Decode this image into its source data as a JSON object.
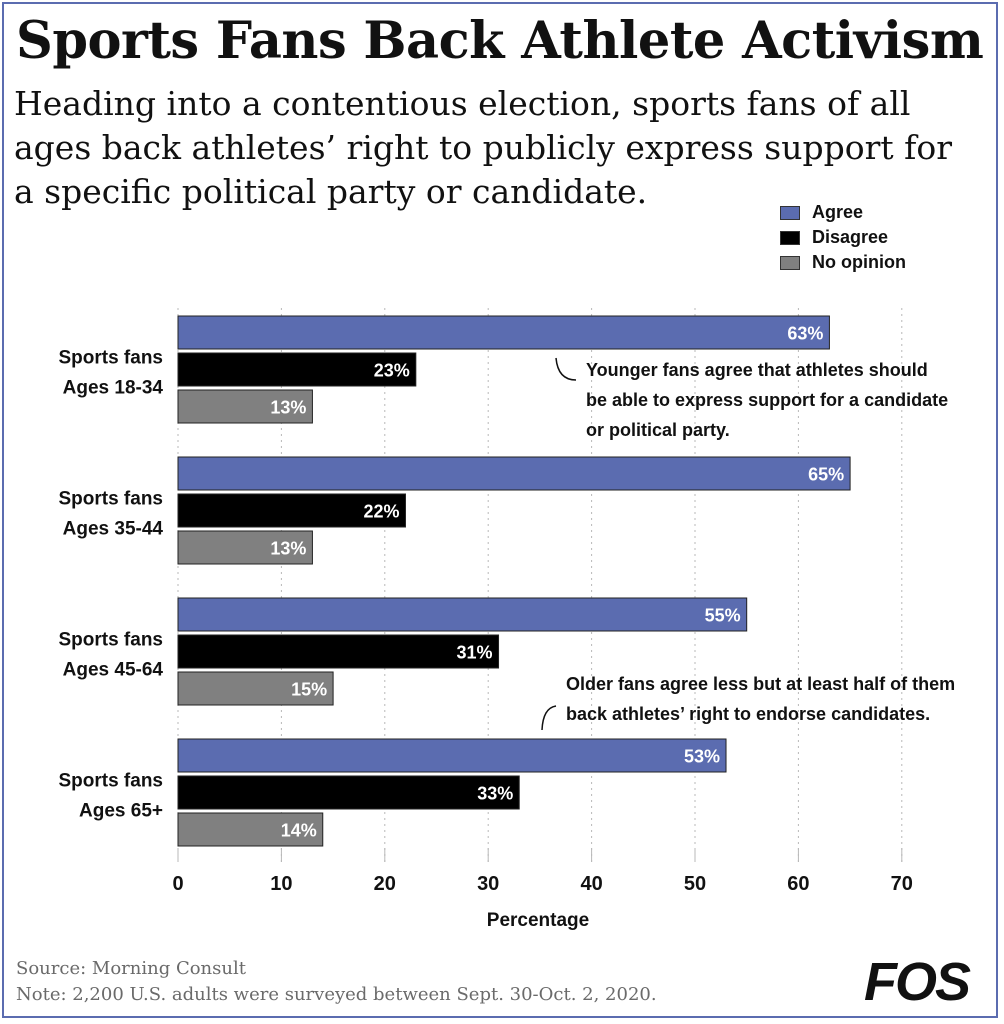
{
  "colors": {
    "agree": "#5b6cb0",
    "disagree": "#000000",
    "no_opinion": "#808080",
    "border": "#5b6cb0"
  },
  "chart_data": {
    "type": "bar",
    "orientation": "horizontal",
    "title": "Sports Fans Back Athlete Activism",
    "subtitle": "Heading into a contentious election, sports fans of all ages back athletes’ right to publicly express support for a specific political party or candidate.",
    "categories": [
      [
        "Sports fans",
        "Ages 18-34"
      ],
      [
        "Sports fans",
        "Ages 35-44"
      ],
      [
        "Sports fans",
        "Ages 45-64"
      ],
      [
        "Sports fans",
        "Ages 65+"
      ]
    ],
    "series": [
      {
        "name": "Agree",
        "values": [
          63,
          65,
          55,
          53
        ],
        "labels": [
          "63%",
          "65%",
          "55%",
          "53%"
        ]
      },
      {
        "name": "Disagree",
        "values": [
          23,
          22,
          31,
          33
        ],
        "labels": [
          "23%",
          "22%",
          "31%",
          "33%"
        ]
      },
      {
        "name": "No opinion",
        "values": [
          13,
          13,
          15,
          14
        ],
        "labels": [
          "13%",
          "13%",
          "15%",
          "14%"
        ]
      }
    ],
    "xlabel": "Percentage",
    "xlim": [
      0,
      70
    ],
    "xticks": [
      "0",
      "10",
      "20",
      "30",
      "40",
      "50",
      "60",
      "70"
    ],
    "legend_position": "top-right",
    "annotations": [
      {
        "group": 0,
        "lines": [
          "Younger fans agree that athletes should",
          "be able to express support for a candidate",
          "or political party."
        ]
      },
      {
        "group": 2,
        "lines": [
          "Older fans agree less but at least half of them",
          "back athletes’ right to endorse candidates."
        ]
      }
    ]
  },
  "footer": {
    "source": "Source: Morning Consult",
    "note": "Note: 2,200 U.S. adults were surveyed between Sept. 30-Oct. 2, 2020.",
    "logo": "FOS"
  }
}
